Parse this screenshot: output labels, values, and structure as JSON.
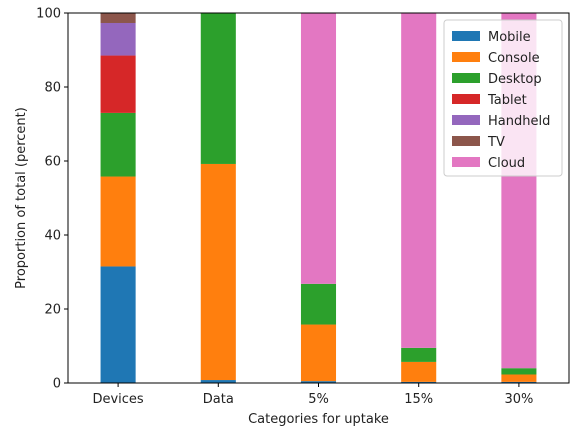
{
  "chart_data": {
    "type": "bar",
    "stacked": true,
    "title": "",
    "xlabel": "Categories for uptake",
    "ylabel": "Proportion of total (percent)",
    "ylim": [
      0,
      100
    ],
    "yticks": [
      0,
      20,
      40,
      60,
      80,
      100
    ],
    "grid": false,
    "legend_position": "top-right",
    "categories": [
      "Devices",
      "Data",
      "5%",
      "15%",
      "30%"
    ],
    "series": [
      {
        "name": "Mobile",
        "color": "#1f77b4",
        "values": [
          31.5,
          0.8,
          0.5,
          0.3,
          0.3
        ]
      },
      {
        "name": "Console",
        "color": "#ff7f0e",
        "values": [
          24.3,
          58.4,
          15.3,
          5.4,
          2.0
        ]
      },
      {
        "name": "Desktop",
        "color": "#2ca02c",
        "values": [
          17.2,
          40.8,
          11.0,
          3.8,
          1.7
        ]
      },
      {
        "name": "Tablet",
        "color": "#d62728",
        "values": [
          15.5,
          0,
          0,
          0,
          0
        ]
      },
      {
        "name": "Handheld",
        "color": "#9467bd",
        "values": [
          8.8,
          0,
          0,
          0,
          0
        ]
      },
      {
        "name": "TV",
        "color": "#8c564b",
        "values": [
          2.7,
          0,
          0,
          0,
          0
        ]
      },
      {
        "name": "Cloud",
        "color": "#e377c2",
        "values": [
          0,
          0,
          73.2,
          90.5,
          96.0
        ]
      }
    ]
  }
}
